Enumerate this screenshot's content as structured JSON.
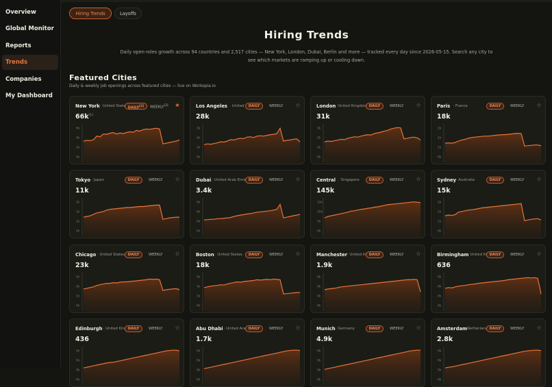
{
  "sidebar": {
    "items": [
      {
        "label": "Overview",
        "active": false
      },
      {
        "label": "Global Monitor",
        "active": false
      },
      {
        "label": "Reports",
        "active": false
      },
      {
        "label": "Trends",
        "active": true
      },
      {
        "label": "Companies",
        "active": false
      },
      {
        "label": "My Dashboard",
        "active": false
      }
    ]
  },
  "tabs": [
    {
      "label": "Hiring Trends",
      "active": true
    },
    {
      "label": "Layoffs",
      "active": false
    }
  ],
  "header": {
    "title": "Hiring Trends",
    "subtitle_line1": "Daily open-roles growth across 94 countries and 2,517 cities — New York, London, Dubai, Berlin and more — tracked every day since 2026-05-15. Search any city to",
    "subtitle_line2": "see which markets are ramping up or cooling down."
  },
  "featured": {
    "title": "Featured Cities",
    "subtitle": "Daily & weekly job openings across featured cities — live on Workopia.io",
    "daily_label": "DAILY",
    "weekly_label": "WEEKLY",
    "cities": [
      {
        "name": "New York",
        "country": "· United States",
        "value": "66k",
        "value_note": "[1]",
        "daily_note": "[2]",
        "weekly_note": "[3]",
        "starred": true,
        "y_ticks": [
          "6k",
          "4k",
          "2k",
          "0k"
        ],
        "series": [
          0.52,
          0.54,
          0.53,
          0.56,
          0.66,
          0.64,
          0.72,
          0.71,
          0.74,
          0.76,
          0.72,
          0.75,
          0.73,
          0.76,
          0.78,
          0.77,
          0.82,
          0.8,
          0.84,
          0.86,
          0.85,
          0.87,
          0.88,
          0.86,
          0.44,
          0.46,
          0.48,
          0.5,
          0.52,
          0.55
        ]
      },
      {
        "name": "Los Angeles",
        "country": "· United States",
        "value": "28k",
        "starred": false,
        "y_ticks": [
          "3k",
          "2k",
          "1k",
          "0k"
        ],
        "series": [
          0.42,
          0.44,
          0.43,
          0.45,
          0.47,
          0.5,
          0.49,
          0.52,
          0.56,
          0.55,
          0.58,
          0.6,
          0.59,
          0.63,
          0.64,
          0.62,
          0.66,
          0.67,
          0.66,
          0.68,
          0.7,
          0.71,
          0.73,
          0.88,
          0.52,
          0.54,
          0.55,
          0.57,
          0.58,
          0.5
        ]
      },
      {
        "name": "London",
        "country": "· United Kingdom",
        "value": "31k",
        "starred": false,
        "y_ticks": [
          "3k",
          "2k",
          "1k",
          "0k"
        ],
        "series": [
          0.5,
          0.52,
          0.51,
          0.53,
          0.55,
          0.57,
          0.56,
          0.6,
          0.62,
          0.64,
          0.63,
          0.66,
          0.68,
          0.7,
          0.69,
          0.73,
          0.75,
          0.77,
          0.8,
          0.82,
          0.86,
          0.88,
          0.9,
          0.89,
          0.58,
          0.6,
          0.62,
          0.63,
          0.61,
          0.55
        ]
      },
      {
        "name": "Paris",
        "country": "· France",
        "value": "18k",
        "starred": false,
        "y_ticks": [
          "2k",
          "1k",
          "1k",
          "0k"
        ],
        "series": [
          0.46,
          0.47,
          0.46,
          0.48,
          0.52,
          0.55,
          0.57,
          0.6,
          0.62,
          0.63,
          0.64,
          0.65,
          0.66,
          0.66,
          0.67,
          0.68,
          0.69,
          0.7,
          0.7,
          0.71,
          0.72,
          0.73,
          0.74,
          0.73,
          0.38,
          0.39,
          0.4,
          0.41,
          0.41,
          0.39
        ]
      },
      {
        "name": "Tokyo",
        "country": "· Japan",
        "value": "11k",
        "starred": false,
        "y_ticks": [
          "1k",
          "1k",
          "1k",
          "0k"
        ],
        "series": [
          0.46,
          0.48,
          0.5,
          0.54,
          0.58,
          0.6,
          0.62,
          0.66,
          0.68,
          0.69,
          0.7,
          0.71,
          0.72,
          0.73,
          0.73,
          0.74,
          0.75,
          0.76,
          0.76,
          0.77,
          0.78,
          0.79,
          0.8,
          0.8,
          0.4,
          0.42,
          0.44,
          0.45,
          0.46,
          0.46
        ]
      },
      {
        "name": "Dubai",
        "country": "· United Arab Emirates",
        "value": "3.4k",
        "starred": false,
        "y_ticks": [
          "0k",
          "0k",
          "0k",
          "0k"
        ],
        "series": [
          0.38,
          0.39,
          0.4,
          0.4,
          0.42,
          0.42,
          0.43,
          0.44,
          0.45,
          0.48,
          0.5,
          0.52,
          0.53,
          0.55,
          0.56,
          0.58,
          0.6,
          0.61,
          0.62,
          0.63,
          0.64,
          0.66,
          0.68,
          0.82,
          0.44,
          0.46,
          0.48,
          0.5,
          0.52,
          0.54
        ]
      },
      {
        "name": "Central",
        "country": "· Singapore",
        "value": "145k",
        "starred": false,
        "y_ticks": [
          "15k",
          "10k",
          "5k",
          "0k"
        ],
        "series": [
          0.44,
          0.48,
          0.5,
          0.52,
          0.54,
          0.56,
          0.58,
          0.6,
          0.63,
          0.64,
          0.66,
          0.68,
          0.69,
          0.71,
          0.72,
          0.74,
          0.75,
          0.77,
          0.79,
          0.81,
          0.82,
          0.83,
          0.84,
          0.85,
          0.86,
          0.87,
          0.88,
          0.89,
          0.88,
          0.87
        ]
      },
      {
        "name": "Sydney",
        "country": "· Australia",
        "value": "15k",
        "starred": false,
        "y_ticks": [
          "2k",
          "1k",
          "1k",
          "0k"
        ],
        "series": [
          0.5,
          0.52,
          0.51,
          0.53,
          0.6,
          0.62,
          0.64,
          0.66,
          0.67,
          0.68,
          0.7,
          0.72,
          0.73,
          0.74,
          0.75,
          0.76,
          0.77,
          0.78,
          0.79,
          0.8,
          0.81,
          0.82,
          0.83,
          0.84,
          0.36,
          0.38,
          0.4,
          0.41,
          0.42,
          0.38
        ]
      },
      {
        "name": "Chicago",
        "country": "· United States",
        "value": "23k",
        "starred": false,
        "y_ticks": [
          "2k",
          "2k",
          "1k",
          "0k"
        ],
        "series": [
          0.54,
          0.56,
          0.58,
          0.6,
          0.64,
          0.66,
          0.68,
          0.7,
          0.7,
          0.72,
          0.71,
          0.73,
          0.74,
          0.74,
          0.75,
          0.76,
          0.77,
          0.78,
          0.79,
          0.8,
          0.82,
          0.81,
          0.82,
          0.8,
          0.5,
          0.52,
          0.53,
          0.54,
          0.55,
          0.52
        ]
      },
      {
        "name": "Boston",
        "country": "· United States",
        "value": "18k",
        "starred": false,
        "y_ticks": [
          "2k",
          "1k",
          "1k",
          "0k"
        ],
        "series": [
          0.58,
          0.6,
          0.62,
          0.63,
          0.64,
          0.66,
          0.65,
          0.68,
          0.7,
          0.72,
          0.74,
          0.73,
          0.75,
          0.76,
          0.77,
          0.78,
          0.8,
          0.79,
          0.8,
          0.81,
          0.8,
          0.82,
          0.81,
          0.8,
          0.4,
          0.41,
          0.42,
          0.43,
          0.44,
          0.44
        ]
      },
      {
        "name": "Manchester",
        "country": "· United Kingdom",
        "value": "1.9k",
        "starred": false,
        "y_ticks": [
          "0k",
          "0k",
          "0k",
          "0k"
        ],
        "series": [
          0.52,
          0.54,
          0.55,
          0.56,
          0.58,
          0.6,
          0.61,
          0.62,
          0.63,
          0.64,
          0.65,
          0.66,
          0.67,
          0.68,
          0.69,
          0.7,
          0.71,
          0.72,
          0.73,
          0.74,
          0.75,
          0.76,
          0.77,
          0.78,
          0.79,
          0.8,
          0.8,
          0.81,
          0.8,
          0.46
        ]
      },
      {
        "name": "Birmingham",
        "country": "· United Kingdom",
        "value": "636",
        "starred": false,
        "y_ticks": [
          "0k",
          "0k",
          "0k",
          "0k"
        ],
        "series": [
          0.56,
          0.58,
          0.57,
          0.6,
          0.62,
          0.63,
          0.64,
          0.66,
          0.67,
          0.68,
          0.7,
          0.71,
          0.72,
          0.73,
          0.74,
          0.75,
          0.76,
          0.77,
          0.78,
          0.8,
          0.81,
          0.82,
          0.83,
          0.84,
          0.85,
          0.86,
          0.85,
          0.86,
          0.84,
          0.4
        ]
      },
      {
        "name": "Edinburgh",
        "country": "· United Kingdom",
        "value": "436",
        "starred": false,
        "y_ticks": [
          "0k",
          "0k",
          "0k",
          "0k"
        ],
        "series": [
          0.4,
          0.42,
          0.44,
          0.46,
          0.48,
          0.5,
          0.52,
          0.54,
          0.55,
          0.56,
          0.58,
          0.6,
          0.62,
          0.64,
          0.66,
          0.68,
          0.7,
          0.72,
          0.74,
          0.76,
          0.78,
          0.8,
          0.82,
          0.84,
          0.86,
          0.88,
          0.89,
          0.9,
          0.9,
          0.88
        ]
      },
      {
        "name": "Abu Dhabi",
        "country": "· United Arab Emirates",
        "value": "1.7k",
        "starred": false,
        "y_ticks": [
          "0k",
          "0k",
          "0k",
          "0k"
        ],
        "series": [
          0.38,
          0.4,
          0.42,
          0.44,
          0.46,
          0.48,
          0.5,
          0.52,
          0.54,
          0.56,
          0.58,
          0.6,
          0.62,
          0.64,
          0.66,
          0.68,
          0.7,
          0.72,
          0.74,
          0.76,
          0.78,
          0.8,
          0.82,
          0.84,
          0.86,
          0.88,
          0.89,
          0.9,
          0.9,
          0.89
        ]
      },
      {
        "name": "Munich",
        "country": "· Germany",
        "value": "4.9k",
        "starred": false,
        "y_ticks": [
          "0k",
          "0k",
          "0k",
          "0k"
        ],
        "series": [
          0.36,
          0.38,
          0.4,
          0.42,
          0.44,
          0.46,
          0.48,
          0.5,
          0.52,
          0.54,
          0.56,
          0.58,
          0.6,
          0.62,
          0.64,
          0.66,
          0.68,
          0.7,
          0.72,
          0.74,
          0.76,
          0.78,
          0.8,
          0.82,
          0.84,
          0.86,
          0.88,
          0.89,
          0.9,
          0.9
        ]
      },
      {
        "name": "Amsterdam",
        "country": "· Netherlands",
        "value": "2.8k",
        "starred": false,
        "y_ticks": [
          "0k",
          "0k",
          "0k",
          "0k"
        ],
        "series": [
          0.4,
          0.42,
          0.43,
          0.45,
          0.47,
          0.49,
          0.51,
          0.53,
          0.55,
          0.57,
          0.59,
          0.61,
          0.63,
          0.65,
          0.67,
          0.69,
          0.71,
          0.73,
          0.75,
          0.77,
          0.79,
          0.81,
          0.83,
          0.85,
          0.87,
          0.88,
          0.89,
          0.9,
          0.9,
          0.89
        ]
      }
    ]
  },
  "colors": {
    "accent": "#e8743a",
    "background": "#141510",
    "card": "#1b1c16"
  }
}
